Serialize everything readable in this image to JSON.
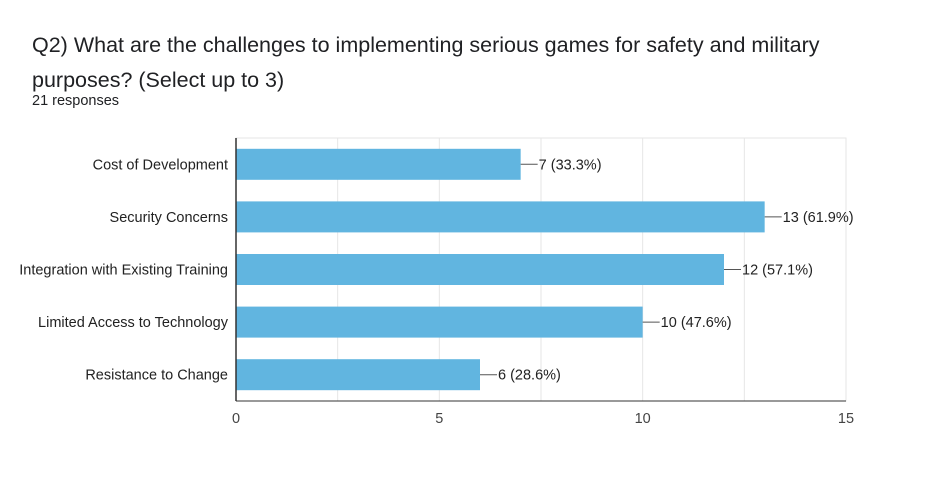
{
  "question": {
    "title": "Q2) What are the challenges to implementing serious games for safety and military purposes?   (Select up to 3)",
    "responses": "21 responses"
  },
  "colors": {
    "bar": "#61b5e0",
    "grid": "#e6e6e6",
    "axis": "#333333",
    "text": "#222222"
  },
  "chart_data": {
    "type": "bar",
    "orientation": "horizontal",
    "categories": [
      "Cost of Development",
      "Security Concerns",
      "Integration with Existing Training",
      "Limited Access to Technology",
      "Resistance to Change"
    ],
    "values": [
      7,
      13,
      12,
      10,
      6
    ],
    "data_labels": [
      "7 (33.3%)",
      "13 (61.9%)",
      "12 (57.1%)",
      "10 (47.6%)",
      "6 (28.6%)"
    ],
    "xlim": [
      0,
      15
    ],
    "xticks": [
      0,
      5,
      10,
      15
    ],
    "minor_grid_step": 2.5,
    "grid": true,
    "legend": "none"
  }
}
